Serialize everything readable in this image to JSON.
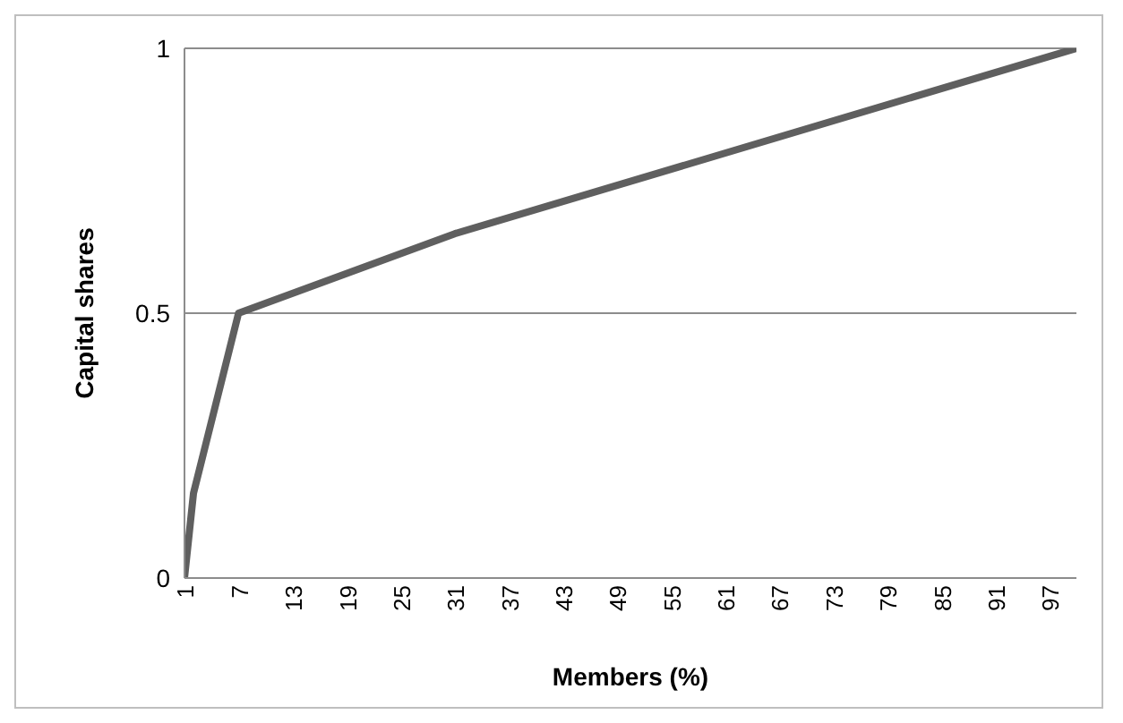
{
  "chart_data": {
    "type": "line",
    "xlabel": "Members (%)",
    "ylabel": "Capital shares",
    "x": [
      1,
      2,
      7,
      31,
      100
    ],
    "series": [
      {
        "color": "#5f5f5f",
        "values": [
          0,
          0.16,
          0.5,
          0.65,
          1
        ]
      }
    ],
    "xlim": [
      1,
      100
    ],
    "xticks": [
      1,
      7,
      13,
      19,
      25,
      31,
      37,
      43,
      49,
      55,
      61,
      67,
      73,
      79,
      85,
      91,
      97
    ],
    "ylim": [
      0,
      1
    ],
    "yticks": [
      0,
      0.5,
      1
    ],
    "grid": "y",
    "legend": false,
    "marker": "none",
    "line_style": "solid"
  }
}
